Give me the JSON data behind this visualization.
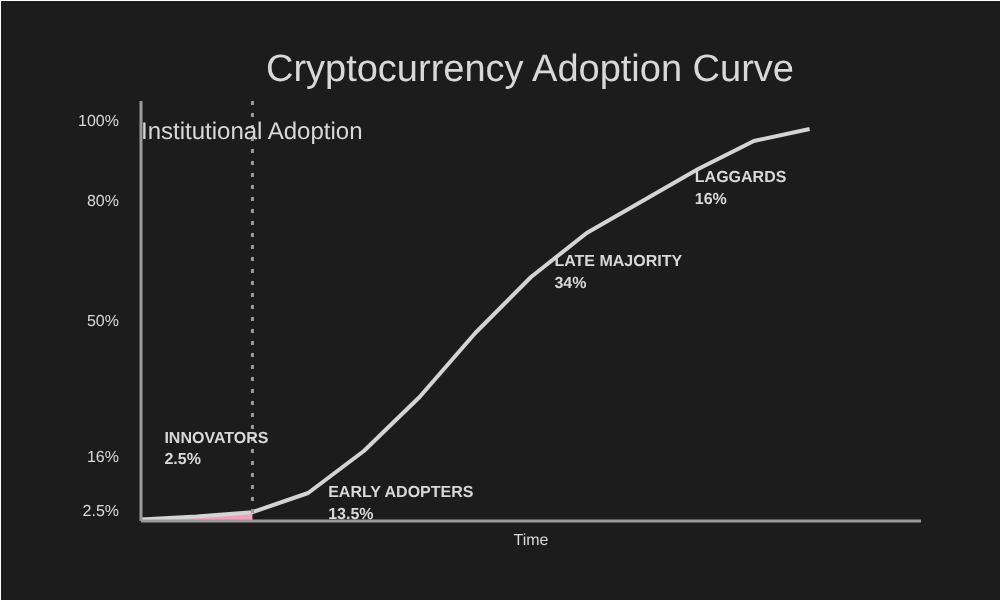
{
  "chart_data": {
    "type": "line",
    "title": "Cryptocurrency Adoption Curve",
    "xlabel": "Time",
    "categories": [
      null,
      null,
      null,
      null,
      null,
      null,
      null,
      null,
      null,
      null,
      null,
      null,
      null
    ],
    "series": [
      {
        "type": "area",
        "color": "#f0a0bc",
        "values": [
          0.4,
          1.1,
          2.2,
          null,
          null,
          null,
          null,
          null,
          null,
          null,
          null,
          null,
          null
        ]
      },
      {
        "color": "#d4d4d4",
        "values": [
          0.4,
          1.1,
          2.2,
          7,
          17.5,
          31,
          47,
          61,
          72,
          80,
          88,
          95,
          98
        ]
      }
    ],
    "ylim": [
      0,
      105
    ],
    "yticks": [
      {
        "value": 2.5,
        "label": "2.5%"
      },
      {
        "value": 16,
        "label": "16%"
      },
      {
        "value": 50,
        "label": "50%"
      },
      {
        "value": 80,
        "label": "80%"
      },
      {
        "value": 100,
        "label": "100%"
      }
    ],
    "tick_labels": "y",
    "grid": false,
    "marker": "none",
    "line_style": "solid",
    "annotations": [
      "Institutional Adoption",
      "INNOVATORS\n2.5%",
      "EARLY ADOPTERS\n13.5%",
      "LATE MAJORITY\n34%",
      "LAGGARDS\n16%"
    ]
  }
}
